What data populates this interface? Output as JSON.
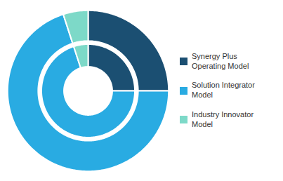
{
  "chart_data": {
    "type": "pie",
    "categories": [
      "Synergy Plus\nOperating Model",
      "Solution Integrator\nModel",
      "Industry Innovator\nModel"
    ],
    "values": [
      25,
      70,
      5
    ],
    "colors": [
      "#1b4f72",
      "#29abe2",
      "#7dd9c8"
    ],
    "legend": "right"
  }
}
